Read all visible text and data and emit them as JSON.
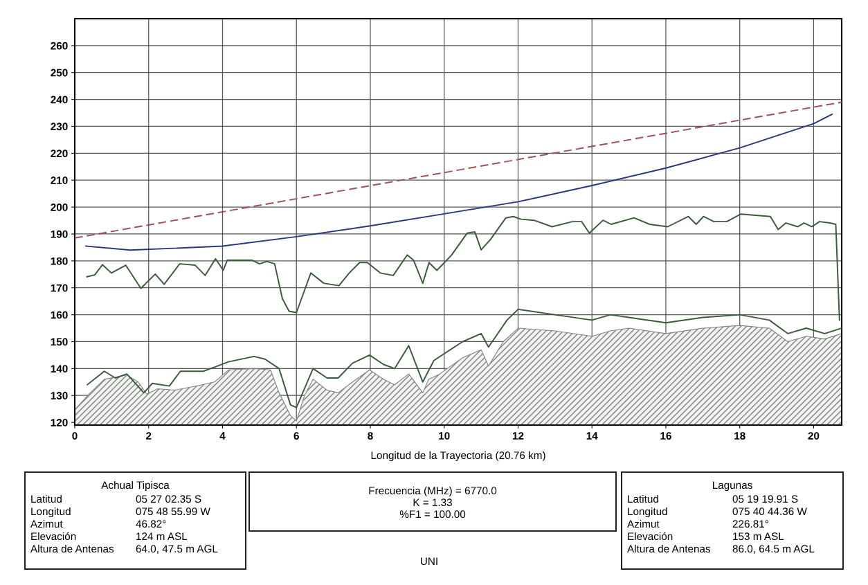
{
  "chart_data": {
    "type": "line",
    "xlabel": "Longitud de la Trayectoria (20.76 km)",
    "xlim": [
      0,
      20.76
    ],
    "ylim": [
      119,
      270
    ],
    "xticks": [
      0,
      2,
      4,
      6,
      8,
      10,
      12,
      14,
      16,
      18,
      20
    ],
    "yticks": [
      120,
      130,
      140,
      150,
      160,
      170,
      180,
      190,
      200,
      210,
      220,
      230,
      240,
      250,
      260
    ],
    "grid": true,
    "legend": false,
    "series": [
      {
        "type": "area",
        "color": "#808080",
        "x": [
          0,
          0.42,
          0.8,
          1.41,
          1.72,
          1.95,
          2.25,
          2.71,
          3.32,
          3.78,
          4.16,
          4.85,
          5.3,
          5.53,
          5.84,
          6.0,
          6.22,
          6.45,
          6.83,
          7.13,
          7.52,
          7.98,
          8.36,
          8.66,
          9.04,
          9.42,
          9.58,
          9.88,
          10.5,
          11.0,
          11.2,
          11.6,
          12,
          13,
          14,
          14.5,
          15,
          16,
          17,
          18,
          18.8,
          19.3,
          19.8,
          20.3,
          20.76
        ],
        "values": [
          124.7,
          131,
          136,
          137.6,
          135,
          130.5,
          132.5,
          132,
          133.6,
          135,
          139.5,
          140,
          139.5,
          131,
          122.5,
          120.5,
          130,
          136,
          132,
          131,
          135,
          139.5,
          136,
          134,
          138,
          131,
          136,
          138,
          144,
          147,
          141,
          150,
          155,
          154,
          152,
          154,
          155,
          153,
          155,
          156,
          155,
          150,
          152,
          151,
          153
        ]
      },
      {
        "color": "#3a5a3a",
        "x": [
          0.34,
          0.8,
          1.1,
          1.41,
          1.87,
          2.1,
          2.56,
          2.86,
          3.48,
          3.78,
          4.16,
          4.85,
          5.15,
          5.53,
          5.84,
          6.0,
          6.45,
          6.83,
          7.13,
          7.52,
          7.98,
          8.36,
          8.66,
          9.04,
          9.42,
          9.72,
          10.5,
          11.0,
          11.2,
          11.7,
          12,
          13,
          14,
          14.5,
          15,
          16,
          17,
          18,
          18.8,
          19.3,
          19.8,
          20.3,
          20.76
        ],
        "values": [
          134,
          139,
          136.5,
          138,
          131,
          134.5,
          133.5,
          139,
          139,
          140.5,
          142.5,
          144.5,
          143.5,
          140,
          126.5,
          125.5,
          140,
          136.5,
          136.5,
          142,
          145,
          141.5,
          140,
          148.5,
          135,
          143,
          150,
          153,
          148,
          158,
          162,
          160,
          158,
          160,
          159,
          157,
          159,
          160,
          158,
          153,
          155,
          153,
          155
        ]
      },
      {
        "color": "#3a5a3a",
        "x": [
          0.33,
          0.54,
          0.75,
          0.99,
          1.38,
          1.79,
          2.18,
          2.42,
          2.84,
          3.26,
          3.53,
          3.81,
          4.02,
          4.13,
          4.79,
          5.0,
          5.2,
          5.41,
          5.62,
          5.8,
          6.0,
          6.39,
          6.74,
          7.15,
          7.43,
          7.71,
          7.92,
          8.27,
          8.62,
          9.0,
          9.17,
          9.42,
          9.59,
          9.8,
          10.01,
          10.2,
          10.62,
          10.83,
          11.0,
          11.25,
          11.67,
          11.87,
          12.08,
          12.43,
          12.92,
          13.47,
          13.72,
          13.93,
          14.3,
          14.52,
          15.14,
          15.56,
          16.05,
          16.61,
          16.82,
          17.02,
          17.3,
          17.65,
          18.03,
          18.83,
          19.04,
          19.25,
          19.57,
          19.74,
          19.95,
          20.16,
          20.44,
          20.6,
          20.7
        ],
        "values": [
          174.1,
          174.8,
          178.6,
          175.5,
          178.4,
          169.8,
          175.1,
          171.3,
          178.9,
          178.4,
          174.6,
          180.8,
          176.5,
          180.3,
          180.3,
          178.9,
          179.8,
          178.9,
          166,
          161.3,
          160.8,
          175.5,
          171.7,
          170.8,
          175.5,
          179.4,
          179.4,
          175.5,
          174.6,
          182.2,
          180.3,
          171.7,
          179.4,
          176.5,
          179.4,
          182.2,
          190.3,
          190.8,
          184.1,
          187.9,
          196,
          196.5,
          195.5,
          195.1,
          192.7,
          194.6,
          194.6,
          190.3,
          195.1,
          193.6,
          196,
          193.6,
          192.7,
          196.5,
          193.6,
          196.5,
          194.6,
          194.6,
          197.4,
          196.5,
          191.7,
          194.1,
          192.7,
          194.1,
          192.7,
          194.6,
          194.1,
          193.6,
          158
        ]
      },
      {
        "color": "#2a3580",
        "x": [
          0.3,
          1.5,
          4,
          6,
          8,
          10,
          12,
          14,
          16,
          18,
          20,
          20.5
        ],
        "values": [
          185.5,
          184,
          185.5,
          189,
          193,
          197.5,
          202,
          208,
          214.5,
          222,
          231,
          234.5
        ]
      },
      {
        "color": "#a05050",
        "line_style": "dashed",
        "x": [
          0,
          20.76
        ],
        "values": [
          188.5,
          239
        ]
      }
    ],
    "annotations": [
      "Achual Tipisca",
      "Latitud",
      "Longitud",
      "Azimut",
      "Elevación",
      "Altura de Antenas",
      "05 27 02.35 S",
      "075 48 55.99 W",
      "46.82°",
      "124 m ASL",
      "64.0, 47.5 m AGL",
      "Frecuencia (MHz) = 6770.0",
      "K = 1.33",
      "%F1 = 100.00",
      "Lagunas",
      "Latitud",
      "Longitud",
      "Azimut",
      "Elevación",
      "Altura de Antenas",
      "05 19 19.91 S",
      "075 40 44.36 W",
      "226.81°",
      "153 m ASL",
      "86.0, 64.5 m AGL",
      "UNI"
    ]
  }
}
